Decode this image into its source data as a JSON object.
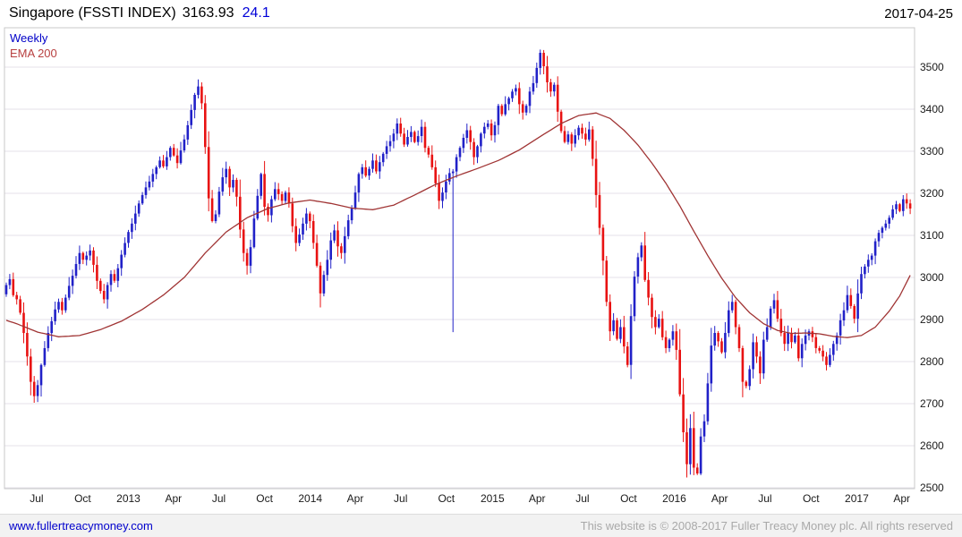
{
  "header": {
    "title": "Singapore (FSSTI INDEX)",
    "price": "3163.93",
    "change": "24.1",
    "date": "2017-04-25"
  },
  "legend": {
    "interval": "Weekly",
    "overlay": "EMA 200"
  },
  "footer": {
    "link": "www.fullertreacymoney.com",
    "copyright": "This website is © 2008-2017 Fuller Treacy Money plc. All rights reserved"
  },
  "colors": {
    "up": "#2121c8",
    "down": "#e81212",
    "ema": "#a03434",
    "grid": "#e4e1ea",
    "border": "#c9c9c9",
    "axis_text": "#1a1a1a",
    "change_text": "#0000d8",
    "legend_interval": "#0000c8",
    "legend_ema": "#b84040",
    "link": "#0000cc"
  },
  "chart_data": {
    "type": "candlestick",
    "title": "Singapore (FSSTI INDEX)",
    "interval": "weekly",
    "overlay": "EMA 200",
    "date_range": [
      "2012-05-01",
      "2017-04-25"
    ],
    "last_close": 3163.93,
    "change": 24.1,
    "legend_position": "top-left",
    "grid": "horizontal-only",
    "y_axis": {
      "side": "right",
      "min": 2500,
      "max": 3500,
      "tick_step": 100
    },
    "y_ticks": [
      2500,
      2600,
      2700,
      2800,
      2900,
      3000,
      3100,
      3200,
      3300,
      3400,
      3500
    ],
    "x_ticks": [
      {
        "label": "Jul",
        "week": 8.7
      },
      {
        "label": "Oct",
        "week": 21.9
      },
      {
        "label": "2013",
        "week": 35.0
      },
      {
        "label": "Apr",
        "week": 47.9
      },
      {
        "label": "Jul",
        "week": 60.9
      },
      {
        "label": "Oct",
        "week": 74.0
      },
      {
        "label": "2014",
        "week": 87.1
      },
      {
        "label": "Apr",
        "week": 100.0
      },
      {
        "label": "Jul",
        "week": 113.0
      },
      {
        "label": "Oct",
        "week": 126.1
      },
      {
        "label": "2015",
        "week": 139.3
      },
      {
        "label": "Apr",
        "week": 152.1
      },
      {
        "label": "Jul",
        "week": 165.1
      },
      {
        "label": "Oct",
        "week": 178.3
      },
      {
        "label": "2016",
        "week": 191.4
      },
      {
        "label": "Apr",
        "week": 204.4
      },
      {
        "label": "Jul",
        "week": 217.4
      },
      {
        "label": "Oct",
        "week": 230.6
      },
      {
        "label": "2017",
        "week": 243.7
      },
      {
        "label": "Apr",
        "week": 256.6
      }
    ],
    "note": "weekly_closes are approximate values read from the chart; candle opens equal the prior week close",
    "weekly_closes": [
      2982,
      2996,
      2958,
      2948,
      2916,
      2868,
      2812,
      2752,
      2718,
      2744,
      2792,
      2832,
      2868,
      2896,
      2924,
      2942,
      2922,
      2952,
      2980,
      3004,
      3032,
      3058,
      3042,
      3052,
      3064,
      3030,
      2992,
      2968,
      2948,
      2982,
      3008,
      2992,
      3022,
      3054,
      3082,
      3108,
      3128,
      3152,
      3176,
      3196,
      3214,
      3228,
      3246,
      3262,
      3278,
      3264,
      3286,
      3308,
      3290,
      3272,
      3302,
      3328,
      3362,
      3398,
      3434,
      3454,
      3414,
      3310,
      3188,
      3134,
      3150,
      3204,
      3238,
      3258,
      3214,
      3232,
      3192,
      3114,
      3058,
      3028,
      3072,
      3140,
      3194,
      3246,
      3168,
      3148,
      3186,
      3210,
      3198,
      3182,
      3202,
      3176,
      3122,
      3082,
      3102,
      3128,
      3152,
      3134,
      3082,
      3028,
      2962,
      3006,
      3042,
      3088,
      3112,
      3074,
      3058,
      3098,
      3136,
      3164,
      3202,
      3246,
      3262,
      3242,
      3258,
      3278,
      3252,
      3274,
      3294,
      3312,
      3324,
      3342,
      3366,
      3342,
      3316,
      3334,
      3346,
      3322,
      3336,
      3358,
      3308,
      3292,
      3262,
      3224,
      3182,
      3202,
      3228,
      3248,
      3252,
      3286,
      3308,
      3332,
      3350,
      3322,
      3286,
      3312,
      3342,
      3358,
      3366,
      3338,
      3362,
      3408,
      3388,
      3412,
      3426,
      3442,
      3450,
      3412,
      3392,
      3408,
      3442,
      3462,
      3498,
      3534,
      3502,
      3464,
      3442,
      3458,
      3394,
      3348,
      3322,
      3340,
      3318,
      3338,
      3356,
      3342,
      3328,
      3352,
      3282,
      3196,
      3118,
      3040,
      2942,
      2872,
      2898,
      2854,
      2882,
      2836,
      2792,
      2908,
      3002,
      3048,
      3076,
      2994,
      2952,
      2906,
      2882,
      2902,
      2858,
      2832,
      2852,
      2872,
      2828,
      2722,
      2632,
      2556,
      2642,
      2548,
      2534,
      2622,
      2658,
      2748,
      2838,
      2868,
      2848,
      2822,
      2868,
      2922,
      2942,
      2882,
      2832,
      2752,
      2742,
      2782,
      2846,
      2812,
      2772,
      2852,
      2882,
      2926,
      2946,
      2902,
      2868,
      2842,
      2868,
      2846,
      2862,
      2808,
      2842,
      2862,
      2872,
      2858,
      2832,
      2826,
      2812,
      2792,
      2816,
      2842,
      2862,
      2898,
      2922,
      2958,
      2932,
      2902,
      2962,
      3008,
      3026,
      3042,
      3052,
      3086,
      3106,
      3118,
      3128,
      3142,
      3162,
      3174,
      3158,
      3186,
      3176,
      3163.93
    ],
    "spike_week": {
      "index": 128,
      "low": 2870
    },
    "ema_anchors": [
      [
        0,
        2898
      ],
      [
        3,
        2890
      ],
      [
        9,
        2870
      ],
      [
        15,
        2859
      ],
      [
        21,
        2862
      ],
      [
        27,
        2876
      ],
      [
        33,
        2896
      ],
      [
        39,
        2924
      ],
      [
        45,
        2958
      ],
      [
        51,
        3000
      ],
      [
        57,
        3058
      ],
      [
        63,
        3108
      ],
      [
        69,
        3142
      ],
      [
        75,
        3164
      ],
      [
        81,
        3177
      ],
      [
        87,
        3184
      ],
      [
        93,
        3176
      ],
      [
        99,
        3165
      ],
      [
        105,
        3161
      ],
      [
        111,
        3172
      ],
      [
        117,
        3196
      ],
      [
        123,
        3221
      ],
      [
        129,
        3241
      ],
      [
        135,
        3259
      ],
      [
        141,
        3278
      ],
      [
        147,
        3303
      ],
      [
        153,
        3335
      ],
      [
        159,
        3366
      ],
      [
        164,
        3385
      ],
      [
        169,
        3391
      ],
      [
        173,
        3378
      ],
      [
        177,
        3350
      ],
      [
        181,
        3315
      ],
      [
        185,
        3272
      ],
      [
        189,
        3224
      ],
      [
        193,
        3170
      ],
      [
        197,
        3110
      ],
      [
        201,
        3052
      ],
      [
        205,
        2998
      ],
      [
        209,
        2952
      ],
      [
        213,
        2916
      ],
      [
        217,
        2890
      ],
      [
        221,
        2874
      ],
      [
        225,
        2867
      ],
      [
        229,
        2868
      ],
      [
        233,
        2866
      ],
      [
        237,
        2860
      ],
      [
        241,
        2857
      ],
      [
        245,
        2862
      ],
      [
        249,
        2882
      ],
      [
        253,
        2920
      ],
      [
        256,
        2956
      ],
      [
        259,
        3005
      ]
    ]
  }
}
